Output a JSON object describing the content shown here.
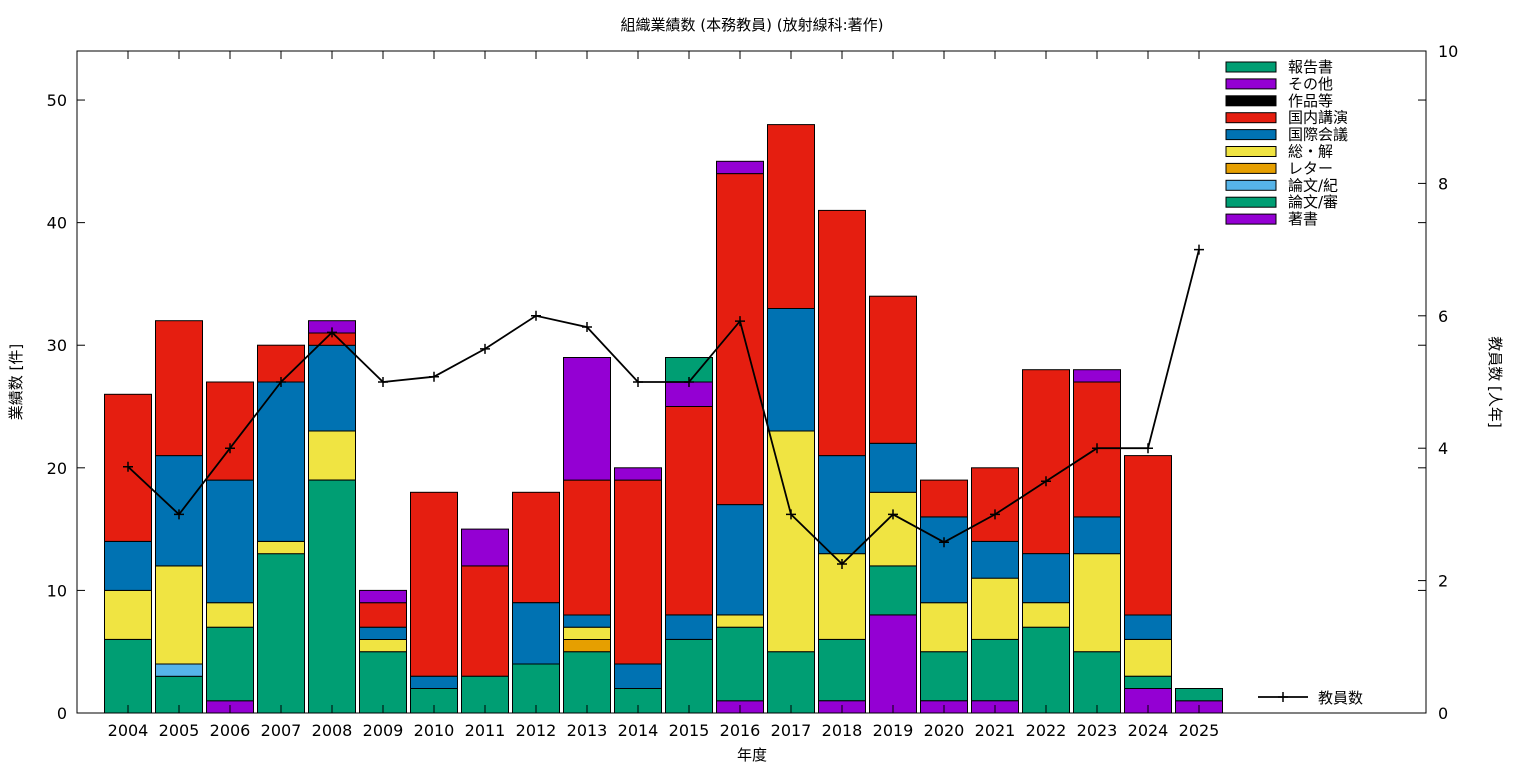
{
  "chart_data": {
    "type": "bar",
    "stacked": true,
    "title": "組織業績数 (本務教員) (放射線科:著作)",
    "xlabel": "年度",
    "ylabel": "業績数 [件]",
    "y2label": "教員数 [人年]",
    "ylim": [
      0,
      54
    ],
    "y2lim": [
      0,
      10
    ],
    "yticks": [
      0,
      10,
      20,
      30,
      40,
      50
    ],
    "y2ticks": [
      0,
      2,
      4,
      6,
      8,
      10
    ],
    "grid": false,
    "legend_position": "top-right",
    "categories": [
      "2004",
      "2005",
      "2006",
      "2007",
      "2008",
      "2009",
      "2010",
      "2011",
      "2012",
      "2013",
      "2014",
      "2015",
      "2016",
      "2017",
      "2018",
      "2019",
      "2020",
      "2021",
      "2022",
      "2023",
      "2024",
      "2025"
    ],
    "series": [
      {
        "name": "著書",
        "color": "#9400d3",
        "values": [
          0,
          0,
          1,
          0,
          0,
          0,
          0,
          0,
          0,
          0,
          0,
          0,
          1,
          0,
          1,
          8,
          1,
          1,
          0,
          0,
          2,
          1
        ]
      },
      {
        "name": "論文/審",
        "color": "#009e73",
        "values": [
          6,
          3,
          6,
          13,
          19,
          5,
          2,
          3,
          4,
          5,
          2,
          6,
          6,
          5,
          5,
          4,
          4,
          5,
          7,
          5,
          1,
          1
        ]
      },
      {
        "name": "論文/紀",
        "color": "#56b4e9",
        "values": [
          0,
          1,
          0,
          0,
          0,
          0,
          0,
          0,
          0,
          0,
          0,
          0,
          0,
          0,
          0,
          0,
          0,
          0,
          0,
          0,
          0,
          0
        ]
      },
      {
        "name": "レター",
        "color": "#e69f00",
        "values": [
          0,
          0,
          0,
          0,
          0,
          0,
          0,
          0,
          0,
          1,
          0,
          0,
          0,
          0,
          0,
          0,
          0,
          0,
          0,
          0,
          0,
          0
        ]
      },
      {
        "name": "総・解",
        "color": "#f0e442",
        "values": [
          4,
          8,
          2,
          1,
          4,
          1,
          0,
          0,
          0,
          1,
          0,
          0,
          1,
          18,
          7,
          6,
          4,
          5,
          2,
          8,
          3,
          0
        ]
      },
      {
        "name": "国際会議",
        "color": "#0072b2",
        "values": [
          4,
          9,
          10,
          13,
          7,
          1,
          1,
          0,
          5,
          1,
          2,
          2,
          9,
          10,
          8,
          4,
          7,
          3,
          4,
          3,
          2,
          0
        ]
      },
      {
        "name": "国内講演",
        "color": "#e51e10",
        "values": [
          12,
          11,
          8,
          3,
          1,
          2,
          15,
          9,
          9,
          11,
          15,
          17,
          27,
          15,
          20,
          12,
          3,
          6,
          15,
          11,
          13,
          0
        ]
      },
      {
        "name": "作品等",
        "color": "#000000",
        "values": [
          0,
          0,
          0,
          0,
          0,
          0,
          0,
          0,
          0,
          0,
          0,
          0,
          0,
          0,
          0,
          0,
          0,
          0,
          0,
          0,
          0,
          0
        ]
      },
      {
        "name": "その他",
        "color": "#9400d3",
        "values": [
          0,
          0,
          0,
          0,
          1,
          1,
          0,
          3,
          0,
          10,
          1,
          2,
          1,
          0,
          0,
          0,
          0,
          0,
          0,
          1,
          0,
          0
        ]
      },
      {
        "name": "報告書",
        "color": "#009e73",
        "values": [
          0,
          0,
          0,
          0,
          0,
          0,
          0,
          0,
          0,
          0,
          0,
          2,
          0,
          0,
          0,
          0,
          0,
          0,
          0,
          0,
          0,
          0
        ]
      }
    ],
    "line": {
      "name": "教員数",
      "color": "#000000",
      "axis": "y2",
      "values": [
        3.72,
        3.0,
        4.0,
        5.0,
        5.75,
        5.0,
        5.08,
        5.5,
        6.0,
        5.83,
        5.0,
        5.0,
        5.92,
        3.0,
        2.25,
        3.0,
        2.58,
        3.0,
        3.5,
        4.0,
        4.0,
        7.0
      ]
    }
  }
}
